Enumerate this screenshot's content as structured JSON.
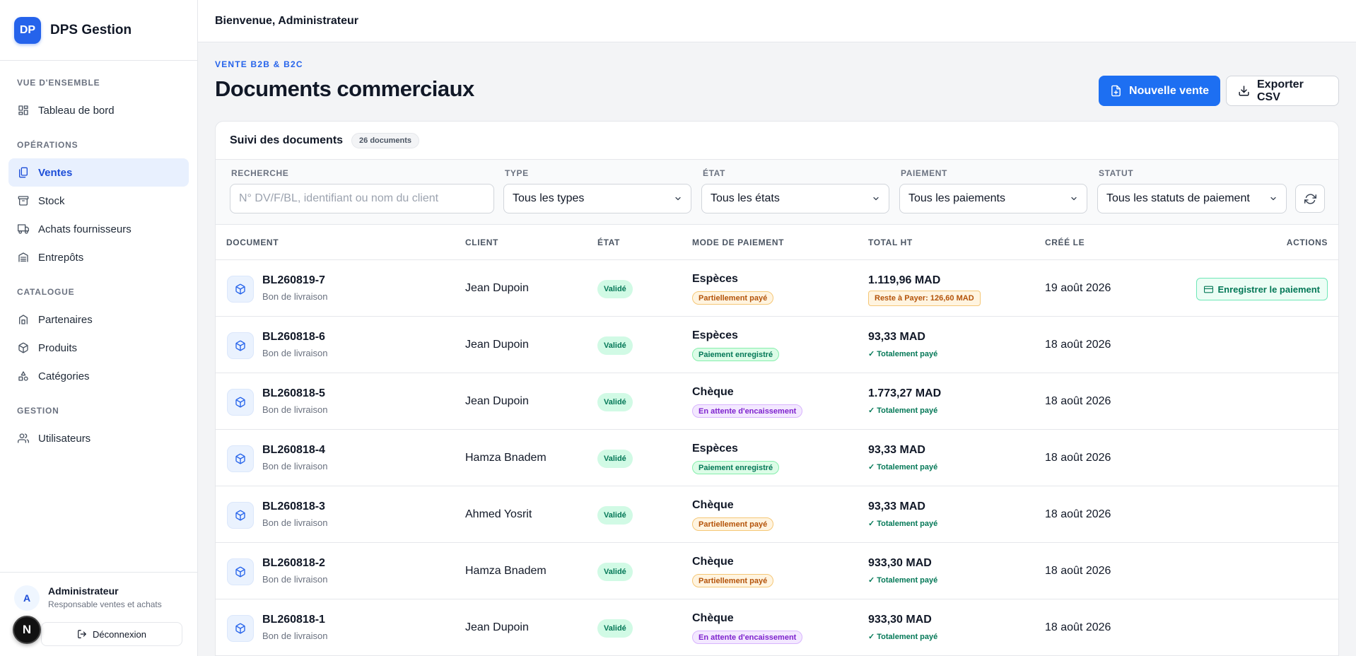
{
  "brand": {
    "logo": "DP",
    "name": "DPS Gestion"
  },
  "topbar": {
    "welcome": "Bienvenue, Administrateur"
  },
  "sidebar": {
    "sections": [
      {
        "title": "VUE D'ENSEMBLE",
        "items": [
          {
            "label": "Tableau de bord",
            "icon": "dashboard-icon"
          }
        ]
      },
      {
        "title": "OPÉRATIONS",
        "items": [
          {
            "label": "Ventes",
            "icon": "sales-icon",
            "active": true
          },
          {
            "label": "Stock",
            "icon": "stock-icon"
          },
          {
            "label": "Achats fournisseurs",
            "icon": "truck-icon"
          },
          {
            "label": "Entrepôts",
            "icon": "warehouse-icon"
          }
        ]
      },
      {
        "title": "CATALOGUE",
        "items": [
          {
            "label": "Partenaires",
            "icon": "partners-icon"
          },
          {
            "label": "Produits",
            "icon": "box-icon"
          },
          {
            "label": "Catégories",
            "icon": "category-icon"
          }
        ]
      },
      {
        "title": "GESTION",
        "items": [
          {
            "label": "Utilisateurs",
            "icon": "users-icon"
          }
        ]
      }
    ]
  },
  "user": {
    "avatar": "A",
    "name": "Administrateur",
    "role": "Responsable ventes et achats",
    "logout_label": "Déconnexion",
    "floating_badge": "N"
  },
  "page": {
    "eyebrow": "VENTE B2B & B2C",
    "title": "Documents commerciaux",
    "new_sale_label": "Nouvelle vente",
    "export_label": "Exporter CSV"
  },
  "card": {
    "title": "Suivi des documents",
    "count": "26 documents"
  },
  "filters": {
    "search": {
      "label": "RECHERCHE",
      "placeholder": "N° DV/F/BL, identifiant ou nom du client"
    },
    "type": {
      "label": "TYPE",
      "value": "Tous les types"
    },
    "state": {
      "label": "ÉTAT",
      "value": "Tous les états"
    },
    "payment": {
      "label": "PAIEMENT",
      "value": "Tous les paiements"
    },
    "status": {
      "label": "STATUT",
      "value": "Tous les statuts de paiement"
    }
  },
  "table": {
    "columns": [
      "DOCUMENT",
      "CLIENT",
      "ÉTAT",
      "MODE DE PAIEMENT",
      "TOTAL HT",
      "CRÉÉ LE",
      "ACTIONS"
    ],
    "rows": [
      {
        "doc": "BL260819-7",
        "type": "Bon de livraison",
        "client": "Jean Dupoin",
        "state": "Validé",
        "mode": "Espèces",
        "pay_badge": "Partiellement payé",
        "pay_color": "orange",
        "total": "1.119,96 MAD",
        "status": "Reste à Payer: 126,60 MAD",
        "status_kind": "remaining",
        "created": "19 août 2026",
        "action": "Enregistrer le paiement"
      },
      {
        "doc": "BL260818-6",
        "type": "Bon de livraison",
        "client": "Jean Dupoin",
        "state": "Validé",
        "mode": "Espèces",
        "pay_badge": "Paiement enregistré",
        "pay_color": "green",
        "total": "93,33 MAD",
        "status": "✓ Totalement payé",
        "status_kind": "paid",
        "created": "18 août 2026"
      },
      {
        "doc": "BL260818-5",
        "type": "Bon de livraison",
        "client": "Jean Dupoin",
        "state": "Validé",
        "mode": "Chèque",
        "pay_badge": "En attente d'encaissement",
        "pay_color": "purple",
        "total": "1.773,27 MAD",
        "status": "✓ Totalement payé",
        "status_kind": "paid",
        "created": "18 août 2026"
      },
      {
        "doc": "BL260818-4",
        "type": "Bon de livraison",
        "client": "Hamza Bnadem",
        "state": "Validé",
        "mode": "Espèces",
        "pay_badge": "Paiement enregistré",
        "pay_color": "green",
        "total": "93,33 MAD",
        "status": "✓ Totalement payé",
        "status_kind": "paid",
        "created": "18 août 2026"
      },
      {
        "doc": "BL260818-3",
        "type": "Bon de livraison",
        "client": "Ahmed Yosrit",
        "state": "Validé",
        "mode": "Chèque",
        "pay_badge": "Partiellement payé",
        "pay_color": "orange",
        "total": "93,33 MAD",
        "status": "✓ Totalement payé",
        "status_kind": "paid",
        "created": "18 août 2026"
      },
      {
        "doc": "BL260818-2",
        "type": "Bon de livraison",
        "client": "Hamza Bnadem",
        "state": "Validé",
        "mode": "Chèque",
        "pay_badge": "Partiellement payé",
        "pay_color": "orange",
        "total": "933,30 MAD",
        "status": "✓ Totalement payé",
        "status_kind": "paid",
        "created": "18 août 2026"
      },
      {
        "doc": "BL260818-1",
        "type": "Bon de livraison",
        "client": "Jean Dupoin",
        "state": "Validé",
        "mode": "Chèque",
        "pay_badge": "En attente d'encaissement",
        "pay_color": "purple",
        "total": "933,30 MAD",
        "status": "✓ Totalement payé",
        "status_kind": "paid",
        "created": "18 août 2026"
      }
    ]
  }
}
